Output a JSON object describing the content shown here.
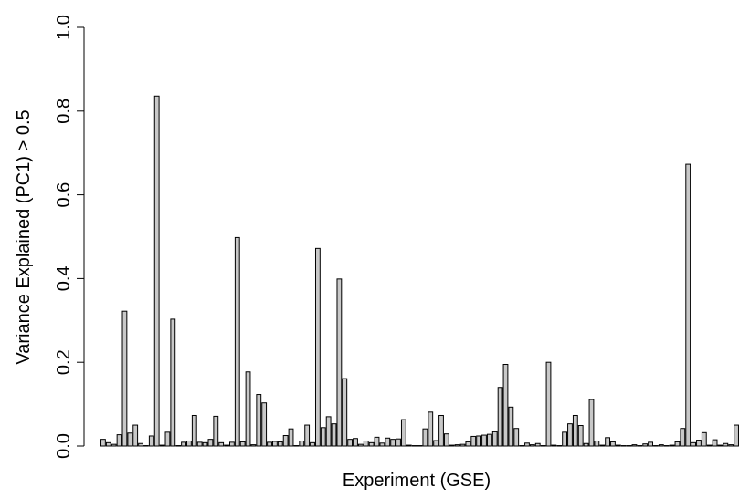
{
  "chart_data": {
    "type": "bar",
    "title": "",
    "xlabel": "Experiment (GSE)",
    "ylabel": "Variance Explained (PC1) > 0.5",
    "ylim": [
      0,
      1.0
    ],
    "y_ticks": [
      0.0,
      0.2,
      0.4,
      0.6,
      0.8,
      1.0
    ],
    "y_tick_labels": [
      "0.0",
      "0.2",
      "0.4",
      "0.6",
      "0.8",
      "1.0"
    ],
    "grid": false,
    "legend": "none",
    "bar_fill": "#c8c8c8",
    "bar_stroke": "#000000",
    "values": [
      0.016,
      0.008,
      0.004,
      0.027,
      0.322,
      0.031,
      0.05,
      0.006,
      0.001,
      0.024,
      0.836,
      0.002,
      0.033,
      0.303,
      0.001,
      0.009,
      0.012,
      0.073,
      0.009,
      0.008,
      0.016,
      0.071,
      0.008,
      0.002,
      0.009,
      0.498,
      0.01,
      0.177,
      0.003,
      0.123,
      0.103,
      0.009,
      0.011,
      0.01,
      0.025,
      0.041,
      0.001,
      0.012,
      0.05,
      0.008,
      0.472,
      0.044,
      0.07,
      0.053,
      0.399,
      0.161,
      0.016,
      0.018,
      0.004,
      0.012,
      0.008,
      0.021,
      0.007,
      0.019,
      0.016,
      0.017,
      0.063,
      0.002,
      0.001,
      0.001,
      0.041,
      0.081,
      0.013,
      0.073,
      0.029,
      0.002,
      0.003,
      0.004,
      0.01,
      0.023,
      0.024,
      0.026,
      0.028,
      0.034,
      0.14,
      0.195,
      0.093,
      0.042,
      0.001,
      0.007,
      0.003,
      0.006,
      0.001,
      0.2,
      0.002,
      0.001,
      0.033,
      0.053,
      0.073,
      0.049,
      0.006,
      0.111,
      0.012,
      0.002,
      0.02,
      0.01,
      0.002,
      0.001,
      0.001,
      0.003,
      0.001,
      0.005,
      0.009,
      0.001,
      0.003,
      0.001,
      0.002,
      0.01,
      0.042,
      0.673,
      0.008,
      0.014,
      0.032,
      0.002,
      0.015,
      0.002,
      0.006,
      0.003,
      0.05
    ]
  }
}
